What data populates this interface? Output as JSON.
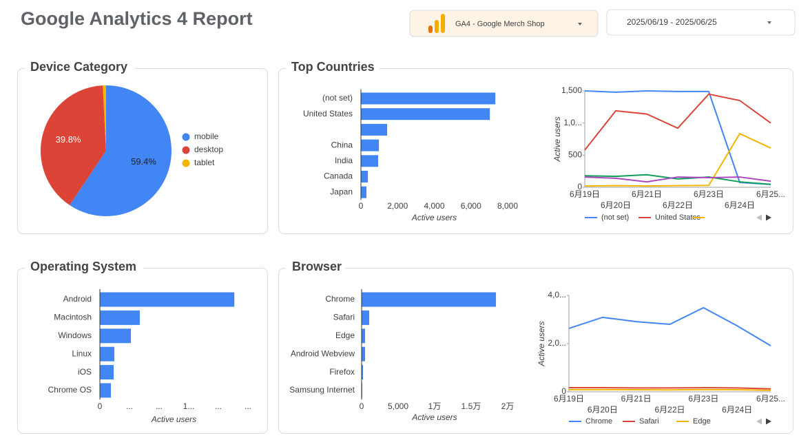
{
  "header": {
    "title": "Google Analytics 4 Report",
    "property": "GA4 - Google Merch Shop",
    "date_range": "2025/06/19 - 2025/06/25"
  },
  "chart_data": [
    {
      "type": "pie",
      "title": "Device Category",
      "categories": [
        "mobile",
        "desktop",
        "tablet"
      ],
      "values": [
        59.4,
        39.8,
        0.8
      ],
      "value_labels": [
        "59.4%",
        "39.8%",
        null
      ],
      "colors": [
        "#4285f4",
        "#db4437",
        "#f4b400"
      ]
    },
    {
      "type": "hbar",
      "title": "Top Countries",
      "categories": [
        "(not set)",
        "United States",
        null,
        "China",
        "India",
        "Canada",
        "Japan"
      ],
      "values": [
        7330,
        7030,
        1430,
        980,
        940,
        380,
        300
      ],
      "color": "#4285f4",
      "xlim": [
        0,
        8000
      ],
      "xticks": [
        0,
        {
          "value": 2000,
          "label": "2,000"
        },
        {
          "value": 4000,
          "label": "4,000"
        },
        {
          "value": 6000,
          "label": "6,000"
        },
        {
          "value": 8000,
          "label": "8,000"
        }
      ],
      "xlabel": "Active users"
    },
    {
      "type": "line",
      "categories": [
        "6月19日",
        "6月20日",
        "6月21日",
        "6月22日",
        "6月23日",
        "6月24日",
        "6月25..."
      ],
      "ylim": [
        0,
        1500
      ],
      "yticks": [
        0,
        500,
        {
          "value": 1000,
          "label": "1,0..."
        },
        {
          "value": 1500,
          "label": "1,500"
        }
      ],
      "ylabel": "Active users",
      "series": [
        {
          "name": "(not set)",
          "color": "#4285f4",
          "values": [
            1500,
            1480,
            1500,
            1490,
            1490,
            75,
            45
          ]
        },
        {
          "name": "United States",
          "color": "#db4437",
          "values": [
            580,
            1190,
            1140,
            920,
            1450,
            1350,
            1000
          ]
        },
        {
          "name": null,
          "color": "#f4b400",
          "values": [
            20,
            25,
            20,
            25,
            30,
            835,
            610
          ]
        },
        {
          "name": null,
          "color": "#0f9d58",
          "values": [
            180,
            170,
            195,
            130,
            160,
            85,
            45
          ]
        },
        {
          "name": null,
          "color": "#ab47bc",
          "values": [
            160,
            140,
            85,
            160,
            150,
            160,
            95
          ]
        }
      ]
    },
    {
      "type": "hbar",
      "title": "Operating System",
      "categories": [
        "Android",
        "Macintosh",
        "Windows",
        "Linux",
        "iOS",
        "Chrome OS"
      ],
      "values": [
        22700,
        6740,
        5230,
        2440,
        2330,
        1860
      ],
      "color": "#4285f4",
      "xlim": [
        0,
        25000
      ],
      "xticks": [
        0,
        {
          "value": 5000,
          "label": "..."
        },
        {
          "value": 10000,
          "label": "..."
        },
        {
          "value": 15000,
          "label": "1..."
        },
        {
          "value": 20000,
          "label": "..."
        },
        {
          "value": 25000,
          "label": "..."
        }
      ],
      "xlabel": "Active users"
    },
    {
      "type": "hbar",
      "title": "Browser",
      "categories": [
        "Chrome",
        "Safari",
        "Edge",
        "Android Webview",
        "Firefox",
        "Samsung Internet"
      ],
      "values": [
        18400,
        1040,
        470,
        470,
        190,
        90
      ],
      "color": "#4285f4",
      "xlim": [
        0,
        20000
      ],
      "xticks": [
        0,
        {
          "value": 5000,
          "label": "5,000"
        },
        {
          "value": 10000,
          "label": "1万"
        },
        {
          "value": 15000,
          "label": "1.5万"
        },
        {
          "value": 20000,
          "label": "2万"
        }
      ],
      "xlabel": "Active users"
    },
    {
      "type": "line",
      "categories": [
        "6月19日",
        "6月20日",
        "6月21日",
        "6月22日",
        "6月23日",
        "6月24日",
        "6月25..."
      ],
      "ylim": [
        0,
        4000
      ],
      "yticks": [
        0,
        {
          "value": 2000,
          "label": "2,0..."
        },
        {
          "value": 4000,
          "label": "4,0..."
        }
      ],
      "ylabel": "Active users",
      "series": [
        {
          "name": "Chrome",
          "color": "#4285f4",
          "values": [
            2630,
            3090,
            2910,
            2800,
            3490,
            2740,
            1910
          ]
        },
        {
          "name": "Safari",
          "color": "#db4437",
          "values": [
            170,
            170,
            160,
            160,
            170,
            160,
            120
          ]
        },
        {
          "name": "Edge",
          "color": "#f4b400",
          "values": [
            90,
            90,
            85,
            80,
            90,
            85,
            60
          ]
        }
      ]
    }
  ]
}
